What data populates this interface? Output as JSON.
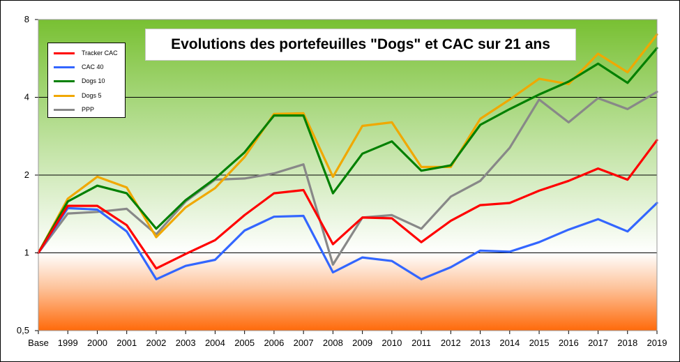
{
  "chart_data": {
    "type": "line",
    "title": "Evolutions des portefeuilles \"Dogs\" et CAC sur  21 ans",
    "xlabel": "",
    "ylabel": "",
    "yscale": "log2",
    "ylim": [
      0.5,
      8
    ],
    "yticks": [
      0.5,
      1,
      2,
      4,
      8
    ],
    "ytick_labels": [
      "0,5",
      "1",
      "2",
      "4",
      "8"
    ],
    "categories": [
      "Base",
      "1999",
      "2000",
      "2001",
      "2002",
      "2003",
      "2004",
      "2005",
      "2006",
      "2007",
      "2008",
      "2009",
      "2010",
      "2011",
      "2012",
      "2013",
      "2014",
      "2015",
      "2016",
      "2017",
      "2018",
      "2019"
    ],
    "legend_position": "top-left",
    "series": [
      {
        "name": "Tracker CAC",
        "color": "#ff0000",
        "values": [
          1.0,
          1.52,
          1.52,
          1.28,
          0.87,
          0.99,
          1.12,
          1.4,
          1.7,
          1.75,
          1.08,
          1.37,
          1.36,
          1.1,
          1.33,
          1.53,
          1.56,
          1.74,
          1.9,
          2.12,
          1.92,
          2.73
        ]
      },
      {
        "name": "CAC 40",
        "color": "#3366ff",
        "values": [
          1.0,
          1.49,
          1.47,
          1.21,
          0.79,
          0.89,
          0.94,
          1.22,
          1.38,
          1.39,
          0.84,
          0.96,
          0.93,
          0.79,
          0.88,
          1.02,
          1.01,
          1.1,
          1.23,
          1.35,
          1.21,
          1.56
        ]
      },
      {
        "name": "Dogs 10",
        "color": "#008000",
        "values": [
          1.0,
          1.58,
          1.82,
          1.7,
          1.24,
          1.6,
          1.94,
          2.45,
          3.4,
          3.4,
          1.7,
          2.42,
          2.7,
          2.08,
          2.18,
          3.13,
          3.6,
          4.1,
          4.6,
          5.4,
          4.55,
          6.2
        ]
      },
      {
        "name": "Dogs 5",
        "color": "#f0a800",
        "values": [
          1.0,
          1.62,
          1.97,
          1.79,
          1.15,
          1.5,
          1.78,
          2.35,
          3.45,
          3.47,
          1.97,
          3.1,
          3.2,
          2.15,
          2.15,
          3.3,
          3.92,
          4.72,
          4.5,
          5.9,
          5.0,
          7.0
        ]
      },
      {
        "name": "PPP",
        "color": "#888888",
        "values": [
          1.0,
          1.42,
          1.44,
          1.48,
          1.18,
          1.58,
          1.92,
          1.94,
          2.03,
          2.2,
          0.9,
          1.37,
          1.4,
          1.24,
          1.65,
          1.9,
          2.55,
          3.92,
          3.2,
          3.97,
          3.6,
          4.2
        ]
      }
    ]
  }
}
